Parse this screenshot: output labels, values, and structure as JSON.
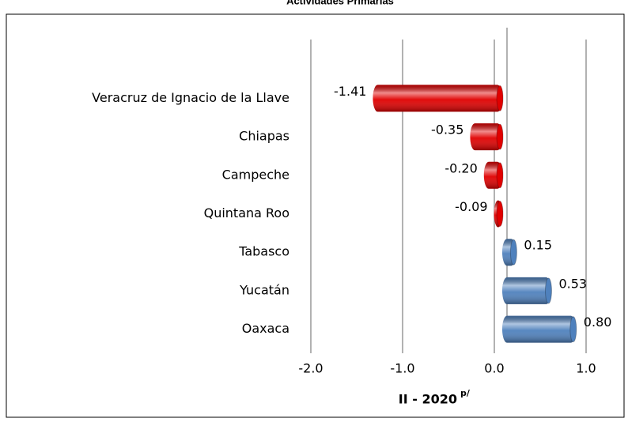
{
  "chart_data": {
    "type": "hbar3d",
    "title": "Actividades Primarias",
    "categories": [
      "Veracruz de Ignacio de la Llave",
      "Chiapas",
      "Campeche",
      "Quintana Roo",
      "Tabasco",
      "Yucatán",
      "Oaxaca"
    ],
    "values": [
      -1.41,
      -0.35,
      -0.2,
      -0.09,
      0.15,
      0.53,
      0.8
    ],
    "value_labels": [
      "-1.41",
      "-0.35",
      "-0.20",
      "-0.09",
      "0.15",
      "0.53",
      "0.80"
    ],
    "colors": [
      "#e00000",
      "#e00000",
      "#e00000",
      "#e00000",
      "#4f81bd",
      "#4f81bd",
      "#4f81bd"
    ],
    "xlim": [
      -2,
      1
    ],
    "xticks": [
      {
        "value": -2,
        "label": "-2.0"
      },
      {
        "value": -1,
        "label": "-1.0"
      },
      {
        "value": 0,
        "label": "0.0"
      },
      {
        "value": 1,
        "label": "1.0"
      }
    ],
    "x_label": "II - 2020",
    "x_label_superscript": "p/",
    "grid": true
  }
}
